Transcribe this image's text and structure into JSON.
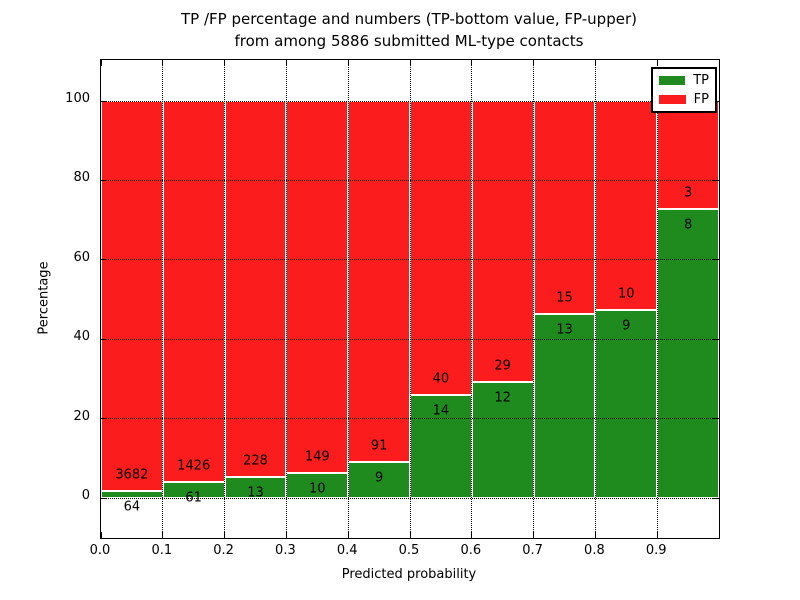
{
  "title": {
    "line1": "TP /FP percentage and numbers (TP-bottom value, FP-upper)",
    "line2": "from among 5886 submitted ML-type contacts"
  },
  "axes": {
    "xlabel": "Predicted probability",
    "ylabel": "Percentage"
  },
  "legend": {
    "items": [
      {
        "label": "TP",
        "color": "#1f8b1f"
      },
      {
        "label": "FP",
        "color": "#fb1d1d"
      }
    ]
  },
  "colors": {
    "tp_green": "#1f8b1f",
    "fp_red": "#fb1d1d",
    "grid": "#000000",
    "bar_edge": "#ffffff"
  },
  "chart_data": {
    "type": "bar",
    "stacked": true,
    "normalized_to_percent": true,
    "title": "TP /FP percentage and numbers (TP-bottom value, FP-upper) from among 5886 submitted ML-type contacts",
    "xlabel": "Predicted probability",
    "ylabel": "Percentage",
    "total_contacts": 5886,
    "bin_starts": [
      0.0,
      0.1,
      0.2,
      0.3,
      0.4,
      0.5,
      0.6,
      0.7,
      0.8,
      0.9
    ],
    "bin_width": 0.1,
    "x_tick_labels": [
      "0.0",
      "0.1",
      "0.2",
      "0.3",
      "0.4",
      "0.5",
      "0.6",
      "0.7",
      "0.8",
      "0.9"
    ],
    "y_ticks": [
      0,
      20,
      40,
      60,
      80,
      100
    ],
    "xlim": [
      0.0,
      1.0
    ],
    "ylim": [
      -10,
      110
    ],
    "grid": true,
    "legend_position": "upper right",
    "series": [
      {
        "name": "TP",
        "color": "#1f8b1f",
        "counts": [
          64,
          61,
          13,
          10,
          9,
          14,
          12,
          13,
          9,
          8
        ]
      },
      {
        "name": "FP",
        "color": "#fb1d1d",
        "counts": [
          3682,
          1426,
          228,
          149,
          91,
          40,
          29,
          15,
          10,
          3
        ]
      }
    ],
    "tp_percent_by_bin": [
      1.71,
      4.1,
      5.39,
      6.29,
      9.0,
      25.93,
      29.27,
      46.43,
      47.37,
      72.73
    ]
  }
}
